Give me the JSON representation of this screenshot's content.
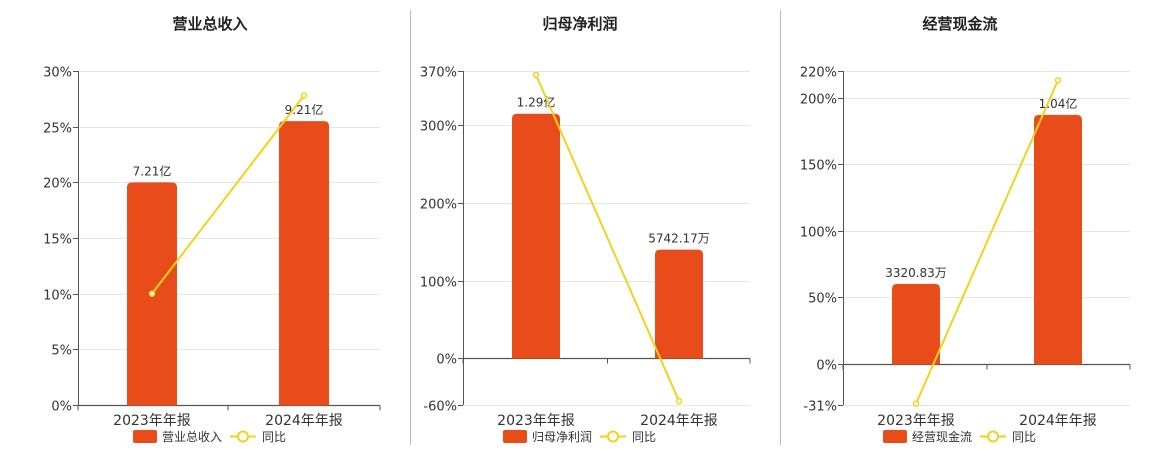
{
  "colors": {
    "bar": "#e84c1a",
    "line": "#f2d21b",
    "grid": "#e6e6e6",
    "axis": "#555555",
    "divider": "#bbbbbb"
  },
  "legend_line_label": "同比",
  "chart_data": [
    {
      "type": "bar",
      "title": "营业总收入",
      "categories": [
        "2023年年报",
        "2024年年报"
      ],
      "series": [
        {
          "name": "营业总收入",
          "type": "bar",
          "labels": [
            "7.21亿",
            "9.21亿"
          ],
          "values": [
            20,
            25.5
          ]
        },
        {
          "name": "同比",
          "type": "line",
          "values": [
            10,
            27.8
          ]
        }
      ],
      "ylim": [
        0,
        30
      ],
      "yticks": [
        "30%",
        "25%",
        "20%",
        "15%",
        "10%",
        "5%",
        "0%"
      ],
      "grid": true,
      "legend": "bottom"
    },
    {
      "type": "bar",
      "title": "归母净利润",
      "categories": [
        "2023年年报",
        "2024年年报"
      ],
      "series": [
        {
          "name": "归母净利润",
          "type": "bar",
          "labels": [
            "1.29亿",
            "5742.17万"
          ],
          "values": [
            315,
            140
          ]
        },
        {
          "name": "同比",
          "type": "line",
          "values": [
            365,
            -55
          ]
        }
      ],
      "ylim": [
        -60,
        370
      ],
      "yticks": [
        "370%",
        "300%",
        "200%",
        "100%",
        "0%",
        "-60%"
      ],
      "grid": true,
      "legend": "bottom"
    },
    {
      "type": "bar",
      "title": "经营现金流",
      "categories": [
        "2023年年报",
        "2024年年报"
      ],
      "series": [
        {
          "name": "经营现金流",
          "type": "bar",
          "labels": [
            "3320.83万",
            "1.04亿"
          ],
          "values": [
            60,
            187
          ]
        },
        {
          "name": "同比",
          "type": "line",
          "values": [
            -30,
            213
          ]
        }
      ],
      "ylim": [
        -31,
        220
      ],
      "yticks": [
        "220%",
        "200%",
        "150%",
        "100%",
        "50%",
        "0%",
        "-31%"
      ],
      "grid": true,
      "legend": "bottom"
    }
  ]
}
